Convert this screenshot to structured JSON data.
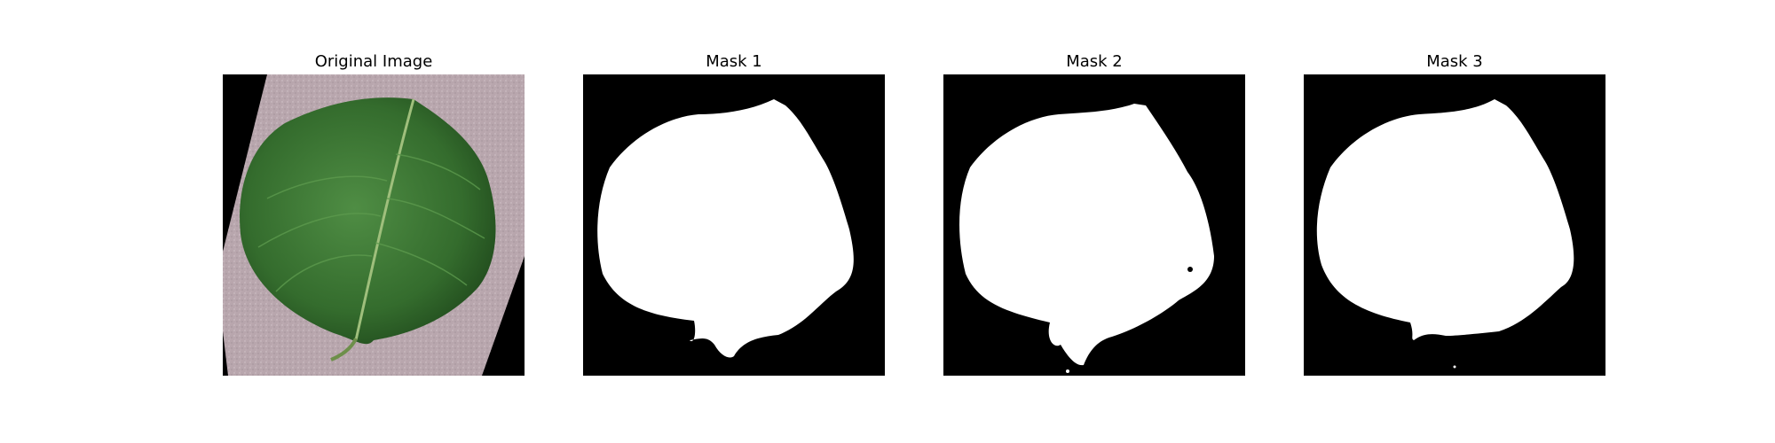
{
  "figure": {
    "panels": [
      {
        "title": "Original Image"
      },
      {
        "title": "Mask 1"
      },
      {
        "title": "Mask 2"
      },
      {
        "title": "Mask 3"
      }
    ],
    "colors": {
      "background": "#ffffff",
      "mask_background": "#000000",
      "mask_foreground": "#ffffff",
      "leaf_green": "#3f7a35",
      "leaf_dark": "#24521f",
      "paper_gray_pink": "#b8a6ad"
    }
  }
}
